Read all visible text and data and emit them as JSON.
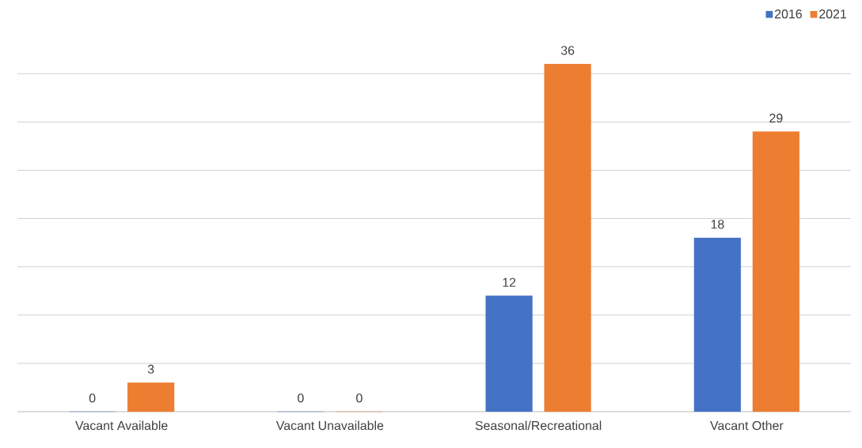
{
  "chart_data": {
    "type": "bar",
    "categories": [
      "Vacant Available",
      "Vacant Unavailable",
      "Seasonal/Recreational",
      "Vacant Other"
    ],
    "series": [
      {
        "name": "2016",
        "color": "#4472c4",
        "values": [
          0,
          0,
          12,
          18
        ]
      },
      {
        "name": "2021",
        "color": "#ed7d31",
        "values": [
          3,
          0,
          36,
          29
        ]
      }
    ],
    "tick_labels": "x",
    "grid": "y",
    "legend": "top right",
    "data_labels": true
  }
}
